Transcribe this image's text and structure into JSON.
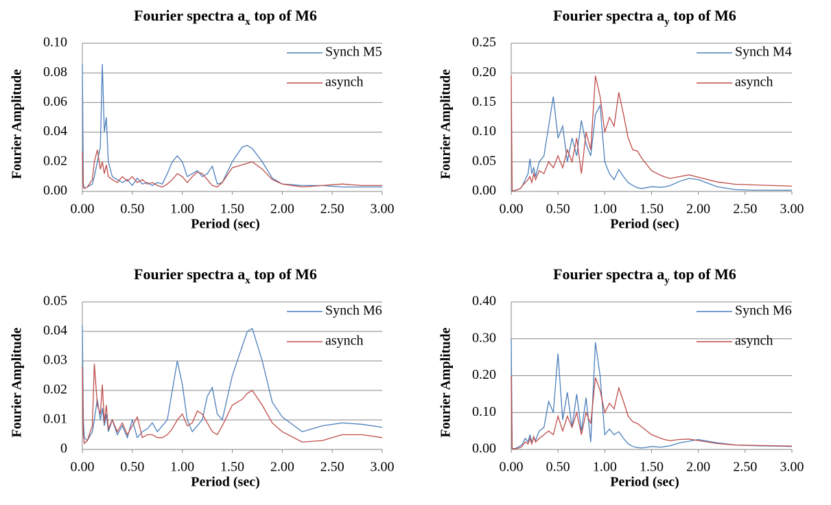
{
  "chart_data": [
    {
      "type": "line",
      "title_parts": [
        "Fourier spectra a",
        "x",
        " top of M6"
      ],
      "xlabel": "Period  (sec)",
      "ylabel": "Fourier Amplitude",
      "x": [
        0,
        0.01,
        0.02,
        0.05,
        0.1,
        0.12,
        0.15,
        0.18,
        0.2,
        0.22,
        0.24,
        0.26,
        0.3,
        0.35,
        0.4,
        0.45,
        0.5,
        0.55,
        0.6,
        0.65,
        0.7,
        0.75,
        0.8,
        0.85,
        0.9,
        0.95,
        1.0,
        1.05,
        1.1,
        1.15,
        1.2,
        1.25,
        1.3,
        1.35,
        1.4,
        1.5,
        1.6,
        1.65,
        1.7,
        1.8,
        1.9,
        2.0,
        2.2,
        2.4,
        2.6,
        2.8,
        3.0
      ],
      "series": [
        {
          "name": "Synch M5",
          "color": "#4a7ebb",
          "values": [
            0.086,
            0.005,
            0.002,
            0.003,
            0.005,
            0.01,
            0.02,
            0.03,
            0.086,
            0.04,
            0.05,
            0.02,
            0.01,
            0.008,
            0.006,
            0.008,
            0.004,
            0.009,
            0.005,
            0.006,
            0.004,
            0.006,
            0.005,
            0.012,
            0.02,
            0.024,
            0.02,
            0.01,
            0.012,
            0.014,
            0.01,
            0.012,
            0.017,
            0.005,
            0.006,
            0.02,
            0.03,
            0.031,
            0.029,
            0.02,
            0.009,
            0.005,
            0.004,
            0.004,
            0.003,
            0.003,
            0.003
          ]
        },
        {
          "name": "asynch",
          "color": "#be4b48",
          "values": [
            0.027,
            0.003,
            0.002,
            0.003,
            0.008,
            0.02,
            0.028,
            0.015,
            0.02,
            0.012,
            0.018,
            0.01,
            0.008,
            0.006,
            0.01,
            0.007,
            0.01,
            0.006,
            0.008,
            0.005,
            0.006,
            0.004,
            0.003,
            0.005,
            0.008,
            0.012,
            0.01,
            0.006,
            0.01,
            0.013,
            0.012,
            0.008,
            0.004,
            0.003,
            0.006,
            0.016,
            0.018,
            0.019,
            0.02,
            0.015,
            0.008,
            0.005,
            0.003,
            0.004,
            0.005,
            0.004,
            0.004
          ]
        }
      ],
      "xlim": [
        0,
        3
      ],
      "ylim": [
        0,
        0.1
      ],
      "xticks": [
        {
          "value": 0,
          "label": "0.00"
        },
        {
          "value": 0.5,
          "label": "0.50"
        },
        {
          "value": 1,
          "label": "1.00"
        },
        {
          "value": 1.5,
          "label": "1.50"
        },
        {
          "value": 2,
          "label": "2.00"
        },
        {
          "value": 2.5,
          "label": "2.50"
        },
        {
          "value": 3,
          "label": "3.00"
        }
      ],
      "yticks": [
        {
          "value": 0,
          "label": "0.00"
        },
        {
          "value": 0.02,
          "label": "0.02"
        },
        {
          "value": 0.04,
          "label": "0.04"
        },
        {
          "value": 0.06,
          "label": "0.06"
        },
        {
          "value": 0.08,
          "label": "0.08"
        },
        {
          "value": 0.1,
          "label": "0.10"
        }
      ],
      "grid": true,
      "legend": "upper right"
    },
    {
      "type": "line",
      "title_parts": [
        "Fourier spectra a",
        "y",
        " top of M6"
      ],
      "xlabel": "Period  (sec)",
      "ylabel": "Fourier Amplitude",
      "x": [
        0,
        0.01,
        0.02,
        0.05,
        0.1,
        0.12,
        0.15,
        0.18,
        0.2,
        0.22,
        0.24,
        0.26,
        0.3,
        0.35,
        0.4,
        0.45,
        0.5,
        0.55,
        0.6,
        0.65,
        0.7,
        0.75,
        0.8,
        0.85,
        0.9,
        0.95,
        1.0,
        1.05,
        1.1,
        1.15,
        1.2,
        1.25,
        1.3,
        1.35,
        1.4,
        1.5,
        1.6,
        1.65,
        1.7,
        1.8,
        1.9,
        2.0,
        2.2,
        2.4,
        2.6,
        2.8,
        3.0
      ],
      "series": [
        {
          "name": "Synch M4",
          "color": "#4a7ebb",
          "values": [
            0.002,
            0.001,
            0.001,
            0.002,
            0.005,
            0.01,
            0.02,
            0.03,
            0.055,
            0.03,
            0.04,
            0.025,
            0.05,
            0.06,
            0.11,
            0.16,
            0.09,
            0.11,
            0.05,
            0.09,
            0.06,
            0.12,
            0.08,
            0.06,
            0.13,
            0.145,
            0.05,
            0.03,
            0.02,
            0.037,
            0.025,
            0.015,
            0.01,
            0.006,
            0.005,
            0.008,
            0.007,
            0.008,
            0.01,
            0.017,
            0.022,
            0.02,
            0.008,
            0.003,
            0.002,
            0.002,
            0.002
          ]
        },
        {
          "name": "asynch",
          "color": "#be4b48",
          "values": [
            0.195,
            0.002,
            0.001,
            0.002,
            0.005,
            0.01,
            0.015,
            0.02,
            0.025,
            0.015,
            0.03,
            0.02,
            0.035,
            0.03,
            0.05,
            0.04,
            0.06,
            0.04,
            0.07,
            0.05,
            0.09,
            0.03,
            0.1,
            0.07,
            0.195,
            0.16,
            0.1,
            0.125,
            0.11,
            0.167,
            0.13,
            0.09,
            0.07,
            0.068,
            0.055,
            0.035,
            0.027,
            0.024,
            0.022,
            0.025,
            0.028,
            0.024,
            0.016,
            0.012,
            0.011,
            0.01,
            0.009
          ]
        }
      ],
      "xlim": [
        0,
        3
      ],
      "ylim": [
        0,
        0.25
      ],
      "xticks": [
        {
          "value": 0,
          "label": "0.00"
        },
        {
          "value": 0.5,
          "label": "0.50"
        },
        {
          "value": 1,
          "label": "1.00"
        },
        {
          "value": 1.5,
          "label": "1.50"
        },
        {
          "value": 2,
          "label": "2.00"
        },
        {
          "value": 2.5,
          "label": "2.50"
        },
        {
          "value": 3,
          "label": "3.00"
        }
      ],
      "yticks": [
        {
          "value": 0,
          "label": "0.00"
        },
        {
          "value": 0.05,
          "label": "0.05"
        },
        {
          "value": 0.1,
          "label": "0.10"
        },
        {
          "value": 0.15,
          "label": "0.15"
        },
        {
          "value": 0.2,
          "label": "0.20"
        },
        {
          "value": 0.25,
          "label": "0.25"
        }
      ],
      "grid": true,
      "legend": "upper right"
    },
    {
      "type": "line",
      "title_parts": [
        "Fourier spectra a",
        "x",
        " top of M6"
      ],
      "xlabel": "Period  (sec)",
      "ylabel": "Fourier Amplitude",
      "x": [
        0,
        0.01,
        0.02,
        0.05,
        0.1,
        0.12,
        0.15,
        0.18,
        0.2,
        0.22,
        0.24,
        0.26,
        0.3,
        0.35,
        0.4,
        0.45,
        0.5,
        0.55,
        0.6,
        0.65,
        0.7,
        0.75,
        0.8,
        0.85,
        0.9,
        0.95,
        1.0,
        1.05,
        1.1,
        1.15,
        1.2,
        1.25,
        1.3,
        1.35,
        1.4,
        1.5,
        1.6,
        1.65,
        1.7,
        1.8,
        1.9,
        2.0,
        2.2,
        2.4,
        2.6,
        2.8,
        3.0
      ],
      "series": [
        {
          "name": "Synch M6",
          "color": "#4a7ebb",
          "values": [
            0.042,
            0.01,
            0.004,
            0.003,
            0.006,
            0.01,
            0.017,
            0.01,
            0.014,
            0.008,
            0.012,
            0.006,
            0.01,
            0.005,
            0.008,
            0.004,
            0.01,
            0.004,
            0.006,
            0.007,
            0.009,
            0.006,
            0.008,
            0.01,
            0.02,
            0.03,
            0.022,
            0.01,
            0.006,
            0.008,
            0.01,
            0.018,
            0.021,
            0.012,
            0.01,
            0.025,
            0.035,
            0.04,
            0.041,
            0.03,
            0.016,
            0.011,
            0.006,
            0.008,
            0.009,
            0.0085,
            0.0075
          ]
        },
        {
          "name": "asynch",
          "color": "#be4b48",
          "values": [
            0.028,
            0.005,
            0.002,
            0.003,
            0.008,
            0.029,
            0.015,
            0.012,
            0.022,
            0.009,
            0.015,
            0.007,
            0.01,
            0.006,
            0.009,
            0.005,
            0.008,
            0.011,
            0.004,
            0.005,
            0.005,
            0.004,
            0.004,
            0.005,
            0.007,
            0.01,
            0.012,
            0.008,
            0.009,
            0.013,
            0.012,
            0.009,
            0.006,
            0.005,
            0.008,
            0.015,
            0.017,
            0.019,
            0.02,
            0.015,
            0.009,
            0.006,
            0.0025,
            0.003,
            0.005,
            0.005,
            0.004
          ]
        }
      ],
      "xlim": [
        0,
        3
      ],
      "ylim": [
        0,
        0.05
      ],
      "xticks": [
        {
          "value": 0,
          "label": "0.00"
        },
        {
          "value": 0.5,
          "label": "0.50"
        },
        {
          "value": 1,
          "label": "1.00"
        },
        {
          "value": 1.5,
          "label": "1.50"
        },
        {
          "value": 2,
          "label": "2.00"
        },
        {
          "value": 2.5,
          "label": "2.50"
        },
        {
          "value": 3,
          "label": "3.00"
        }
      ],
      "yticks": [
        0,
        0.01,
        0.02,
        0.03,
        0.04,
        0.05
      ],
      "grid": true,
      "legend": "upper right"
    },
    {
      "type": "line",
      "title_parts": [
        "Fourier spectra a",
        "y",
        " top of M6"
      ],
      "xlabel": "Period  (sec)",
      "ylabel": "Fourier Amplitude",
      "x": [
        0,
        0.01,
        0.02,
        0.05,
        0.1,
        0.12,
        0.15,
        0.18,
        0.2,
        0.22,
        0.24,
        0.26,
        0.3,
        0.35,
        0.4,
        0.45,
        0.5,
        0.55,
        0.6,
        0.65,
        0.7,
        0.75,
        0.8,
        0.85,
        0.9,
        0.95,
        1.0,
        1.05,
        1.1,
        1.15,
        1.2,
        1.25,
        1.3,
        1.35,
        1.4,
        1.5,
        1.6,
        1.65,
        1.7,
        1.8,
        1.9,
        2.0,
        2.2,
        2.4,
        2.6,
        2.8,
        3.0
      ],
      "series": [
        {
          "name": "Synch M6",
          "color": "#4a7ebb",
          "values": [
            0.3,
            0.003,
            0.002,
            0.003,
            0.01,
            0.015,
            0.03,
            0.02,
            0.04,
            0.02,
            0.03,
            0.025,
            0.05,
            0.06,
            0.13,
            0.1,
            0.26,
            0.08,
            0.155,
            0.06,
            0.15,
            0.05,
            0.14,
            0.02,
            0.29,
            0.2,
            0.04,
            0.055,
            0.04,
            0.048,
            0.03,
            0.015,
            0.008,
            0.005,
            0.004,
            0.008,
            0.006,
            0.008,
            0.01,
            0.018,
            0.022,
            0.027,
            0.018,
            0.012,
            0.01,
            0.009,
            0.008
          ]
        },
        {
          "name": "asynch",
          "color": "#be4b48",
          "values": [
            0.2,
            0.002,
            0.001,
            0.002,
            0.005,
            0.01,
            0.02,
            0.015,
            0.03,
            0.015,
            0.035,
            0.02,
            0.03,
            0.04,
            0.05,
            0.04,
            0.09,
            0.05,
            0.09,
            0.06,
            0.1,
            0.04,
            0.1,
            0.07,
            0.195,
            0.16,
            0.1,
            0.125,
            0.11,
            0.167,
            0.13,
            0.09,
            0.075,
            0.07,
            0.06,
            0.04,
            0.03,
            0.026,
            0.024,
            0.027,
            0.028,
            0.024,
            0.016,
            0.012,
            0.011,
            0.01,
            0.009
          ]
        }
      ],
      "xlim": [
        0,
        3
      ],
      "ylim": [
        0,
        0.4
      ],
      "xticks": [
        {
          "value": 0,
          "label": "0.00"
        },
        {
          "value": 0.5,
          "label": "0.50"
        },
        {
          "value": 1,
          "label": "1.00"
        },
        {
          "value": 1.5,
          "label": "1.50"
        },
        {
          "value": 2,
          "label": "2.00"
        },
        {
          "value": 2.5,
          "label": "2.50"
        },
        {
          "value": 3,
          "label": "3.00"
        }
      ],
      "yticks": [
        {
          "value": 0,
          "label": "0.00"
        },
        {
          "value": 0.1,
          "label": "0.10"
        },
        {
          "value": 0.2,
          "label": "0.20"
        },
        {
          "value": 0.3,
          "label": "0.30"
        },
        {
          "value": 0.4,
          "label": "0.40"
        }
      ],
      "grid": true,
      "legend": "upper right"
    }
  ]
}
